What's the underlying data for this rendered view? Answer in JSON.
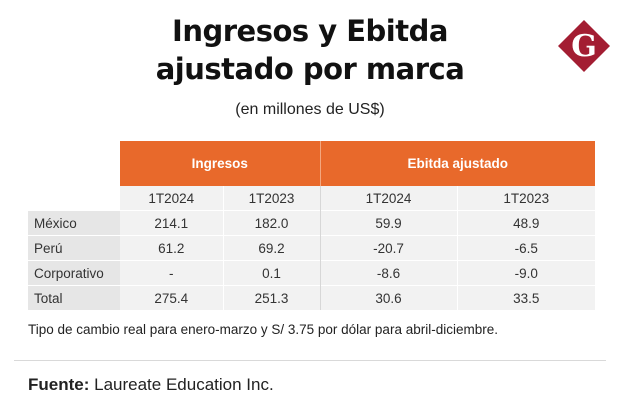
{
  "header": {
    "title_line1": "Ingresos y Ebitda",
    "title_line2": "ajustado por marca",
    "subtitle": "(en millones de US$)"
  },
  "logo": {
    "letter": "G",
    "color": "#a31d32",
    "icon": "gestion-g-logo"
  },
  "table": {
    "group_headers": [
      "Ingresos",
      "Ebitda ajustado"
    ],
    "periods": [
      "1T2024",
      "1T2023",
      "1T2024",
      "1T2023"
    ],
    "rows": [
      {
        "label": "México",
        "values": [
          "214.1",
          "182.0",
          "59.9",
          "48.9"
        ]
      },
      {
        "label": "Perú",
        "values": [
          "61.2",
          "69.2",
          "-20.7",
          "-6.5"
        ]
      },
      {
        "label": "Corporativo",
        "values": [
          "-",
          "0.1",
          "-8.6",
          "-9.0"
        ]
      },
      {
        "label": "Total",
        "values": [
          "275.4",
          "251.3",
          "30.6",
          "33.5"
        ]
      }
    ]
  },
  "note": "Tipo de cambio real para enero-marzo y S/ 3.75 por dólar para abril-diciembre.",
  "source": {
    "label": "Fuente:",
    "text": " Laureate Education Inc."
  },
  "colors": {
    "accent": "#e8692b",
    "cell_bg": "#f2f2f2",
    "label_bg": "#e6e6e6"
  }
}
